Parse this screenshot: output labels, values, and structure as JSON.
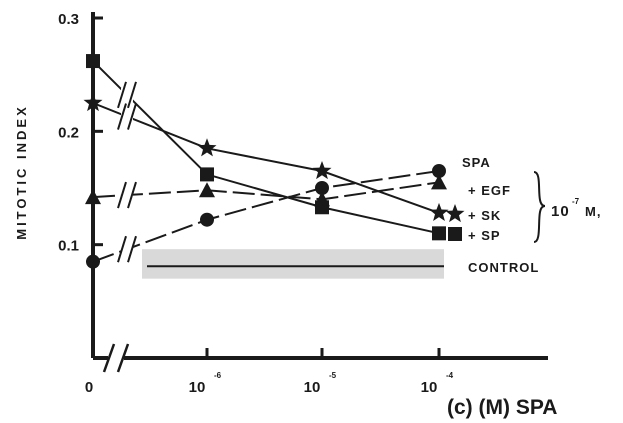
{
  "chart_data": {
    "type": "line",
    "ylabel": "MITOTIC INDEX",
    "caption": "(c) (M) SPA",
    "x_ticks": [
      {
        "base": "0",
        "exp": ""
      },
      {
        "base": "10",
        "exp": "-6"
      },
      {
        "base": "10",
        "exp": "-5"
      },
      {
        "base": "10",
        "exp": "-4"
      }
    ],
    "y_ticks": [
      "0.1",
      "0.2",
      "0.3"
    ],
    "ylim": [
      0.0,
      0.3
    ],
    "series": [
      {
        "name": "SPA",
        "marker": "circle",
        "dash": "long-dash",
        "values": [
          0.085,
          0.122,
          0.15,
          0.165
        ]
      },
      {
        "name": "+ EGF",
        "marker": "triangle",
        "dash": "long-dash",
        "values": [
          0.142,
          0.148,
          0.14,
          0.155
        ]
      },
      {
        "name": "+ SK",
        "marker": "star",
        "dash": "solid",
        "values": [
          0.225,
          0.185,
          0.165,
          0.128
        ]
      },
      {
        "name": "+ SP",
        "marker": "square",
        "dash": "solid",
        "values": [
          0.262,
          0.162,
          0.133,
          0.11
        ]
      }
    ],
    "bracket_label": {
      "base": "10",
      "exp": "-7",
      "unit": "M,"
    },
    "control": {
      "label": "CONTROL",
      "value": 0.081,
      "band": [
        0.07,
        0.096
      ]
    }
  }
}
